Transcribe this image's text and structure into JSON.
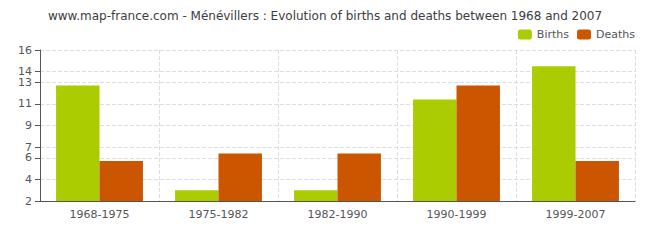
{
  "chart_data": {
    "type": "bar",
    "title": "www.map-france.com - Ménévillers : Evolution of births and deaths between 1968 and 2007",
    "categories": [
      "1968-1975",
      "1975-1982",
      "1982-1990",
      "1990-1999",
      "1999-2007"
    ],
    "series": [
      {
        "name": "Births",
        "color": "#aacc00",
        "values": [
          12.7,
          3.0,
          3.0,
          11.4,
          14.5
        ]
      },
      {
        "name": "Deaths",
        "color": "#cc5500",
        "values": [
          5.7,
          6.4,
          6.4,
          12.7,
          5.7
        ]
      }
    ],
    "ylim": [
      2,
      16
    ],
    "yticks": [
      2,
      4,
      6,
      7,
      9,
      11,
      13,
      14,
      16
    ],
    "grid": true,
    "legend": "upper right"
  }
}
